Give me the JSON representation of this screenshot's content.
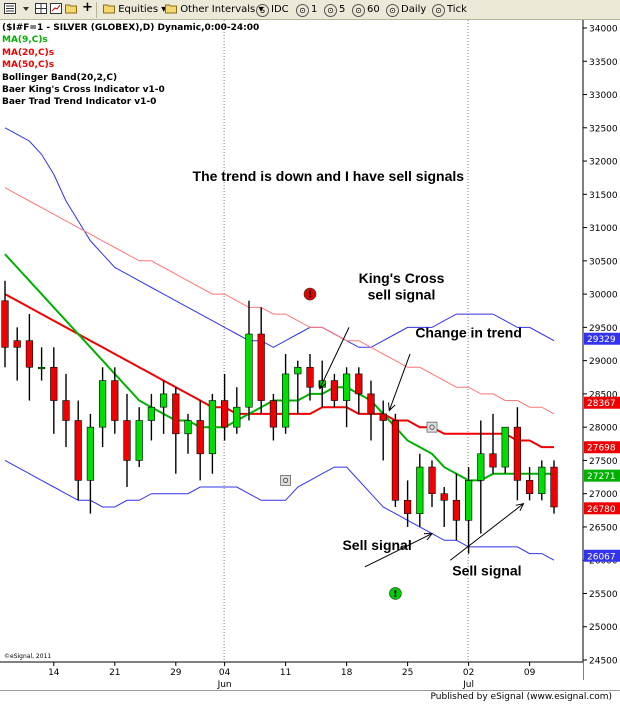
{
  "toolbar": {
    "symbol_icon": "symbol-list-icon",
    "add_icon": "plus-icon",
    "equities_label": "Equities",
    "other_intervals_label": "Other Intervals",
    "idc_label": "IDC",
    "i1_label": "1",
    "i5_label": "5",
    "i60_label": "60",
    "daily_label": "Daily",
    "tick_label": "Tick"
  },
  "legend": {
    "title": "($I#F=1 - SILVER (GLOBEX),D) Dynamic,0:00-24:00",
    "ma9": "MA(9,C)s",
    "ma20": "MA(20,C)s",
    "ma50": "MA(50,C)s",
    "bb": "Bollinger Band(20,2,C)",
    "kings": "Baer King's Cross Indicator v1-0",
    "trad": "Baer Trad Trend Indicator v1-0"
  },
  "footer": {
    "copyright": "©eSignal, 2011",
    "published": "Published by eSignal (www.esignal.com)"
  },
  "colors": {
    "up": "#00dd00",
    "down": "#ee0000",
    "ma9": "#00b000",
    "ma20": "#ee0000",
    "ma50": "#ff7777",
    "bollinger": "#3333ee",
    "annotation": "#000000"
  },
  "chart_data": {
    "type": "candlestick",
    "title": "",
    "xlabel": "",
    "ylabel": "",
    "ylim": [
      24500,
      34000
    ],
    "y_ticks": [
      24500,
      25000,
      25500,
      26000,
      26500,
      27000,
      27500,
      28000,
      28500,
      29000,
      29500,
      30000,
      30500,
      31000,
      31500,
      32000,
      32500,
      33000,
      33500,
      34000
    ],
    "y_tick_labels": [
      "24500",
      "25000",
      "25500",
      "26000",
      "26500",
      "27000",
      "27500",
      "28000",
      "28500",
      "29000",
      "29500",
      "30000",
      "30500",
      "31000",
      "31500",
      "32000",
      "32500",
      "33000",
      "33500",
      "34000"
    ],
    "x_tick_labels": [
      "14",
      "21",
      "29",
      "04",
      "11",
      "18",
      "25",
      "02",
      "09"
    ],
    "x_tick_index": [
      4,
      9,
      14,
      18,
      23,
      28,
      33,
      38,
      43
    ],
    "month_labels": [
      {
        "label": "Jun",
        "index": 18
      },
      {
        "label": "Jul",
        "index": 38
      }
    ],
    "candles": [
      {
        "o": 29900,
        "h": 30200,
        "l": 28900,
        "c": 29200
      },
      {
        "o": 29300,
        "h": 29500,
        "l": 28700,
        "c": 29200
      },
      {
        "o": 29300,
        "h": 29700,
        "l": 28400,
        "c": 28900
      },
      {
        "o": 28900,
        "h": 29200,
        "l": 28700,
        "c": 28900
      },
      {
        "o": 28900,
        "h": 29200,
        "l": 27900,
        "c": 28400
      },
      {
        "o": 28400,
        "h": 28800,
        "l": 27700,
        "c": 28100
      },
      {
        "o": 28100,
        "h": 28400,
        "l": 26900,
        "c": 27200
      },
      {
        "o": 27200,
        "h": 28200,
        "l": 26700,
        "c": 28000
      },
      {
        "o": 28000,
        "h": 28900,
        "l": 27700,
        "c": 28700
      },
      {
        "o": 28700,
        "h": 28900,
        "l": 27900,
        "c": 28100
      },
      {
        "o": 28100,
        "h": 28500,
        "l": 27100,
        "c": 27500
      },
      {
        "o": 27500,
        "h": 28300,
        "l": 27400,
        "c": 28100
      },
      {
        "o": 28100,
        "h": 28500,
        "l": 27800,
        "c": 28300
      },
      {
        "o": 28300,
        "h": 28700,
        "l": 27900,
        "c": 28500
      },
      {
        "o": 28500,
        "h": 28600,
        "l": 27300,
        "c": 27900
      },
      {
        "o": 27900,
        "h": 28200,
        "l": 27600,
        "c": 28100
      },
      {
        "o": 28100,
        "h": 28400,
        "l": 27200,
        "c": 27600
      },
      {
        "o": 27600,
        "h": 28500,
        "l": 27300,
        "c": 28400
      },
      {
        "o": 28400,
        "h": 28800,
        "l": 27800,
        "c": 28000
      },
      {
        "o": 28000,
        "h": 28600,
        "l": 27900,
        "c": 28300
      },
      {
        "o": 28300,
        "h": 29900,
        "l": 28100,
        "c": 29400
      },
      {
        "o": 29400,
        "h": 29800,
        "l": 28200,
        "c": 28400
      },
      {
        "o": 28400,
        "h": 28500,
        "l": 27800,
        "c": 28000
      },
      {
        "o": 28000,
        "h": 29100,
        "l": 27900,
        "c": 28800
      },
      {
        "o": 28800,
        "h": 29000,
        "l": 28200,
        "c": 28900
      },
      {
        "o": 28900,
        "h": 29100,
        "l": 28400,
        "c": 28600
      },
      {
        "o": 28600,
        "h": 29000,
        "l": 28300,
        "c": 28700
      },
      {
        "o": 28700,
        "h": 28800,
        "l": 28300,
        "c": 28400
      },
      {
        "o": 28400,
        "h": 28900,
        "l": 28000,
        "c": 28800
      },
      {
        "o": 28800,
        "h": 28900,
        "l": 28200,
        "c": 28500
      },
      {
        "o": 28500,
        "h": 28700,
        "l": 27800,
        "c": 28200
      },
      {
        "o": 28200,
        "h": 28400,
        "l": 27500,
        "c": 28100
      },
      {
        "o": 28100,
        "h": 28200,
        "l": 26800,
        "c": 26900
      },
      {
        "o": 26900,
        "h": 27200,
        "l": 26500,
        "c": 26700
      },
      {
        "o": 26700,
        "h": 27600,
        "l": 26500,
        "c": 27400
      },
      {
        "o": 27400,
        "h": 27500,
        "l": 26800,
        "c": 27000
      },
      {
        "o": 27000,
        "h": 27100,
        "l": 26500,
        "c": 26900
      },
      {
        "o": 26900,
        "h": 27300,
        "l": 26300,
        "c": 26600
      },
      {
        "o": 26600,
        "h": 27400,
        "l": 26100,
        "c": 27200
      },
      {
        "o": 27200,
        "h": 28100,
        "l": 26400,
        "c": 27600
      },
      {
        "o": 27600,
        "h": 28200,
        "l": 27300,
        "c": 27400
      },
      {
        "o": 27400,
        "h": 28000,
        "l": 27300,
        "c": 28000
      },
      {
        "o": 28000,
        "h": 28300,
        "l": 26900,
        "c": 27200
      },
      {
        "o": 27200,
        "h": 27400,
        "l": 26900,
        "c": 27000
      },
      {
        "o": 27000,
        "h": 27500,
        "l": 26900,
        "c": 27400
      },
      {
        "o": 27400,
        "h": 27500,
        "l": 26700,
        "c": 26800
      }
    ],
    "ma9": [
      30600,
      30400,
      30200,
      30000,
      29800,
      29600,
      29400,
      29200,
      29000,
      28800,
      28600,
      28400,
      28300,
      28200,
      28100,
      28100,
      28000,
      28000,
      28000,
      28100,
      28200,
      28300,
      28400,
      28400,
      28400,
      28500,
      28500,
      28600,
      28600,
      28500,
      28400,
      28200,
      28000,
      27800,
      27700,
      27600,
      27400,
      27300,
      27200,
      27200,
      27300,
      27300,
      27300,
      27300,
      27300,
      27300
    ],
    "ma20": [
      30000,
      29900,
      29800,
      29700,
      29600,
      29500,
      29400,
      29300,
      29200,
      29100,
      29000,
      28900,
      28800,
      28700,
      28600,
      28500,
      28400,
      28300,
      28300,
      28200,
      28200,
      28200,
      28200,
      28200,
      28200,
      28200,
      28300,
      28300,
      28300,
      28200,
      28200,
      28200,
      28100,
      28100,
      28000,
      28000,
      27900,
      27900,
      27900,
      27900,
      27900,
      27900,
      27800,
      27800,
      27700,
      27700
    ],
    "ma50": [
      31600,
      31500,
      31400,
      31300,
      31200,
      31100,
      31000,
      30900,
      30800,
      30700,
      30600,
      30500,
      30500,
      30400,
      30300,
      30200,
      30100,
      30000,
      30000,
      29900,
      29800,
      29800,
      29700,
      29700,
      29600,
      29500,
      29500,
      29400,
      29300,
      29300,
      29200,
      29100,
      29000,
      28900,
      28900,
      28800,
      28700,
      28600,
      28600,
      28500,
      28500,
      28400,
      28400,
      28300,
      28300,
      28200
    ],
    "bb_upper": [
      32500,
      32400,
      32300,
      32100,
      31800,
      31400,
      31100,
      30800,
      30600,
      30400,
      30300,
      30200,
      30100,
      30000,
      29900,
      29800,
      29700,
      29600,
      29500,
      29400,
      29300,
      29300,
      29200,
      29300,
      29400,
      29500,
      29500,
      29400,
      29300,
      29200,
      29200,
      29300,
      29400,
      29500,
      29500,
      29500,
      29600,
      29700,
      29700,
      29700,
      29700,
      29600,
      29500,
      29500,
      29400,
      29300
    ],
    "bb_lower": [
      27500,
      27400,
      27300,
      27200,
      27100,
      27000,
      26900,
      26900,
      26800,
      26800,
      26900,
      26900,
      27000,
      27000,
      27000,
      27000,
      27100,
      27100,
      27100,
      27100,
      27000,
      26900,
      26900,
      26900,
      27100,
      27200,
      27300,
      27400,
      27400,
      27200,
      27000,
      26800,
      26700,
      26600,
      26500,
      26400,
      26300,
      26300,
      26200,
      26200,
      26200,
      26200,
      26200,
      26100,
      26100,
      26000
    ],
    "price_labels": [
      {
        "label": "29329",
        "value": 29329,
        "color": "#3333ee"
      },
      {
        "label": "28367",
        "value": 28367,
        "color": "#ee0000"
      },
      {
        "label": "27698",
        "value": 27698,
        "color": "#ee0000"
      },
      {
        "label": "27271",
        "value": 27271,
        "color": "#00b000"
      },
      {
        "label": "26780",
        "value": 26780,
        "color": "#ee0000"
      },
      {
        "label": "26067",
        "value": 26067,
        "color": "#3333ee"
      }
    ],
    "annotations": [
      {
        "name": "trend-note",
        "text": "The trend is down and I have sell signals",
        "index": 26.5,
        "value": 31700
      },
      {
        "name": "kings-cross-line1",
        "text": "King's Cross",
        "index": 32.5,
        "value": 30170
      },
      {
        "name": "kings-cross-line2",
        "text": "sell signal",
        "index": 32.5,
        "value": 29920
      },
      {
        "name": "change-in-trend",
        "text": "Change in trend",
        "index": 38,
        "value": 29350
      },
      {
        "name": "sell-signal-1",
        "text": "Sell signal",
        "index": 30.5,
        "value": 26150
      },
      {
        "name": "sell-signal-2",
        "text": "Sell signal",
        "index": 39.5,
        "value": 25770
      }
    ]
  }
}
